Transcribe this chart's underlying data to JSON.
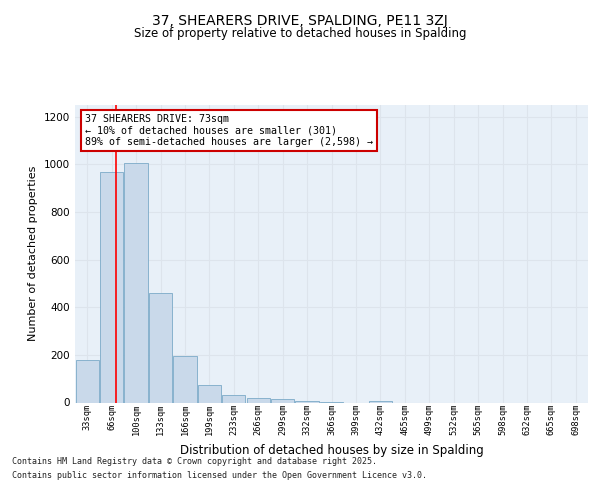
{
  "title1": "37, SHEARERS DRIVE, SPALDING, PE11 3ZJ",
  "title2": "Size of property relative to detached houses in Spalding",
  "xlabel": "Distribution of detached houses by size in Spalding",
  "ylabel": "Number of detached properties",
  "categories": [
    "33sqm",
    "66sqm",
    "100sqm",
    "133sqm",
    "166sqm",
    "199sqm",
    "233sqm",
    "266sqm",
    "299sqm",
    "332sqm",
    "366sqm",
    "399sqm",
    "432sqm",
    "465sqm",
    "499sqm",
    "532sqm",
    "565sqm",
    "598sqm",
    "632sqm",
    "665sqm",
    "698sqm"
  ],
  "values": [
    180,
    970,
    1005,
    460,
    195,
    75,
    30,
    20,
    15,
    8,
    1,
    0,
    5,
    0,
    0,
    0,
    0,
    0,
    0,
    0,
    0
  ],
  "bar_color": "#c9d9ea",
  "bar_edge_color": "#7baac8",
  "grid_color": "#dde4ec",
  "red_line_x": 1.18,
  "annotation_text": "37 SHEARERS DRIVE: 73sqm\n← 10% of detached houses are smaller (301)\n89% of semi-detached houses are larger (2,598) →",
  "annotation_box_color": "#ffffff",
  "annotation_box_edge": "#cc0000",
  "footnote1": "Contains HM Land Registry data © Crown copyright and database right 2025.",
  "footnote2": "Contains public sector information licensed under the Open Government Licence v3.0.",
  "ylim": [
    0,
    1250
  ],
  "yticks": [
    0,
    200,
    400,
    600,
    800,
    1000,
    1200
  ],
  "background_color": "#e8f0f8"
}
